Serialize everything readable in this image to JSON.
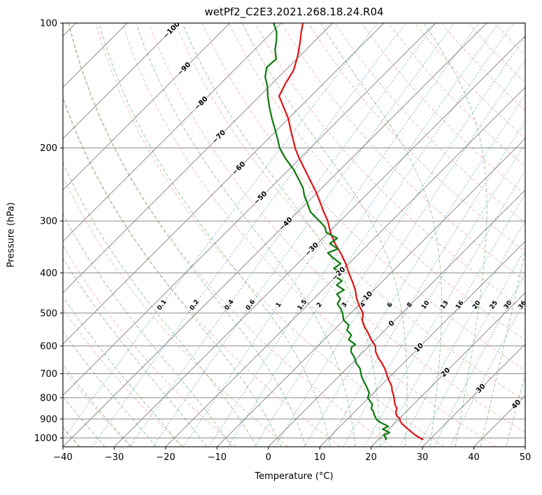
{
  "chart_data": {
    "type": "line",
    "subtype": "skewT-logP-sounding",
    "title": "wetPf2_C2E3.2021.268.18.24.R04",
    "xlabel": "Temperature (°C)",
    "ylabel": "Pressure (hPa)",
    "xlim": [
      -40,
      50
    ],
    "x_ticks": [
      -40,
      -30,
      -20,
      -10,
      0,
      10,
      20,
      30,
      40,
      50
    ],
    "pressure_lim_bottom": 1050,
    "pressure_lim_top": 100,
    "pressure_ticks": [
      100,
      200,
      300,
      400,
      500,
      600,
      700,
      800,
      900,
      1000
    ],
    "skew_deg": 45,
    "grid": true,
    "isotherms": {
      "start": -150,
      "end": 50,
      "step": 10
    },
    "dry_adiabats": {
      "start": -40,
      "end": 200,
      "step": 10
    },
    "moist_adiabats": {
      "start": -40,
      "end": 50,
      "step": 5
    },
    "mixing_ratios": [
      0.1,
      0.2,
      0.4,
      0.6,
      1,
      1.5,
      2,
      3,
      4,
      6,
      8,
      10,
      13,
      16,
      20,
      25,
      30,
      36
    ],
    "mixing_label_pressure": 478,
    "isotherm_labels": [
      {
        "t": -100,
        "p": 104
      },
      {
        "t": -90,
        "p": 129
      },
      {
        "t": -80,
        "p": 156
      },
      {
        "t": -70,
        "p": 188
      },
      {
        "t": -60,
        "p": 224
      },
      {
        "t": -50,
        "p": 264
      },
      {
        "t": -40,
        "p": 305
      },
      {
        "t": -30,
        "p": 351
      },
      {
        "t": -20,
        "p": 402
      },
      {
        "t": -10,
        "p": 460
      },
      {
        "t": 0,
        "p": 530
      },
      {
        "t": 10,
        "p": 606
      },
      {
        "t": 20,
        "p": 695
      },
      {
        "t": 30,
        "p": 760
      },
      {
        "t": 40,
        "p": 830
      }
    ],
    "series": [
      {
        "name": "temperature",
        "color": "#e01212",
        "pressure": [
          1008,
          1000,
          985,
          970,
          955,
          940,
          925,
          910,
          900,
          885,
          870,
          850,
          830,
          810,
          790,
          770,
          750,
          730,
          710,
          700,
          680,
          660,
          640,
          620,
          600,
          580,
          560,
          540,
          520,
          500,
          480,
          460,
          440,
          420,
          400,
          380,
          360,
          340,
          320,
          300,
          285,
          270,
          255,
          240,
          225,
          210,
          200,
          190,
          180,
          170,
          160,
          150,
          140,
          130,
          120,
          112,
          105,
          100
        ],
        "values": [
          28.6,
          27.8,
          26.4,
          25.2,
          24.0,
          22.8,
          21.6,
          20.6,
          20.2,
          19.0,
          18.2,
          17.6,
          16.4,
          15.4,
          14.4,
          13.2,
          12.2,
          10.8,
          9.4,
          8.8,
          7.4,
          5.8,
          4.0,
          2.4,
          1.2,
          -0.8,
          -2.6,
          -4.6,
          -6.4,
          -7.6,
          -9.8,
          -11.8,
          -13.6,
          -15.8,
          -18.2,
          -20.6,
          -23.4,
          -26.6,
          -29.6,
          -32.4,
          -35.0,
          -37.6,
          -40.4,
          -43.6,
          -47.0,
          -50.6,
          -53.0,
          -55.2,
          -57.6,
          -60.0,
          -63.0,
          -66.2,
          -67.4,
          -68.4,
          -70.4,
          -72.4,
          -74.4,
          -75.8
        ]
      },
      {
        "name": "dewpoint",
        "color": "#0a7a0a",
        "pressure": [
          1008,
          1000,
          985,
          970,
          952,
          938,
          922,
          908,
          900,
          880,
          860,
          850,
          830,
          800,
          780,
          755,
          730,
          710,
          700,
          680,
          660,
          640,
          620,
          605,
          595,
          580,
          565,
          550,
          535,
          520,
          505,
          500,
          488,
          475,
          462,
          450,
          440,
          428,
          418,
          408,
          400,
          390,
          380,
          368,
          358,
          350,
          340,
          330,
          320,
          310,
          302,
          295,
          285,
          272,
          260,
          250,
          237,
          225,
          212,
          200,
          190,
          180,
          170,
          160,
          150,
          142,
          135,
          128,
          122,
          116,
          110,
          105,
          100
        ],
        "values": [
          21.4,
          21.2,
          20.2,
          20.8,
          18.8,
          19.4,
          17.6,
          16.2,
          15.6,
          14.4,
          13.4,
          12.6,
          12.0,
          9.8,
          9.2,
          7.6,
          5.8,
          4.4,
          3.8,
          2.6,
          0.8,
          -0.6,
          -2.4,
          -3.2,
          -3.0,
          -5.2,
          -5.6,
          -7.4,
          -8.0,
          -10.0,
          -11.2,
          -11.6,
          -12.8,
          -14.4,
          -14.8,
          -16.4,
          -15.8,
          -18.2,
          -18.0,
          -20.2,
          -19.8,
          -22.0,
          -21.6,
          -24.2,
          -26.2,
          -25.0,
          -27.6,
          -27.2,
          -30.4,
          -31.8,
          -33.6,
          -35.2,
          -37.6,
          -39.8,
          -42.0,
          -43.6,
          -46.4,
          -49.2,
          -52.8,
          -56.0,
          -58.2,
          -60.6,
          -63.2,
          -65.8,
          -68.4,
          -70.4,
          -72.6,
          -74.2,
          -74.0,
          -76.0,
          -77.6,
          -79.2,
          -81.5
        ]
      }
    ],
    "colors": {
      "grid": "#8c8c8c",
      "spine": "#000000",
      "dry_adiabat": "#e98b80",
      "moist_adiabat": "#3d9140",
      "mixing_ratio": "#2077b4",
      "mixing_ratio_label": "#1f77b4",
      "label_negative": "#1f77b4",
      "label_zero": "#777777",
      "label_positive": "#d03030",
      "temperature": "#e01212",
      "dewpoint": "#0a7a0a"
    }
  }
}
